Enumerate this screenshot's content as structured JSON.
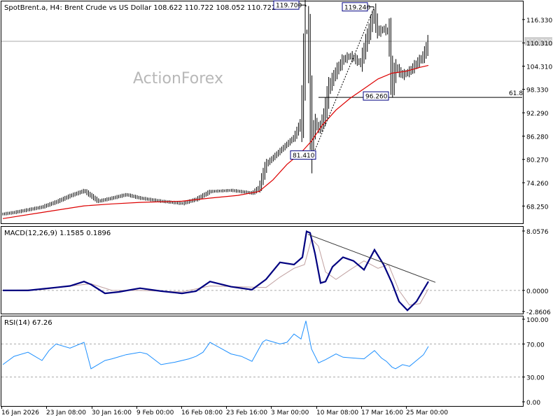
{
  "colors": {
    "background": "#ffffff",
    "text": "#000000",
    "grid_line": "#aaaaaa",
    "bar": "#000000",
    "ema": "#dd0000",
    "macd": "#000080",
    "macd_signal": "#c0a0a0",
    "rsi": "#1e90ff",
    "watermark": "#b8b8b8"
  },
  "chart_data": [
    {
      "type": "bar",
      "role": "price",
      "title": "SpotBrent.a, H4:  Brent Crude vs US Dollar  108.622 110.722 108.052 110.722",
      "watermark": "ActionForex",
      "ylim": [
        63.8,
        121.0
      ],
      "y_ticks": [
        "116.330",
        "110.310",
        "104.310",
        "98.330",
        "92.290",
        "86.280",
        "80.270",
        "74.260",
        "68.250"
      ],
      "last_price": "110.722",
      "fib_level": {
        "value": 96.26,
        "label": "61.8"
      },
      "annotations": [
        {
          "label": "119.700",
          "x": 437,
          "y": 119.7
        },
        {
          "label": "119.240",
          "x": 534,
          "y": 119.24
        },
        {
          "label": "96.260",
          "x": 552,
          "y": 96.26
        },
        {
          "label": "81.410",
          "x": 447,
          "y": 81.41
        }
      ],
      "trend_line": {
        "x": [
          447,
          534
        ],
        "y": [
          81.41,
          119.24
        ]
      },
      "price_path": {
        "x": [
          4,
          20,
          40,
          60,
          80,
          100,
          120,
          140,
          160,
          180,
          200,
          230,
          260,
          280,
          300,
          330,
          360,
          370,
          380,
          400,
          420,
          430,
          437,
          441,
          445,
          450,
          455,
          462,
          470,
          480,
          490,
          500,
          515,
          525,
          534,
          540,
          548,
          555,
          560,
          565,
          575,
          585,
          595,
          605,
          612
        ],
        "y": [
          66.2,
          66.6,
          67.3,
          68.0,
          69.3,
          70.9,
          72.2,
          69.5,
          70.3,
          71.2,
          70.3,
          69.5,
          68.9,
          70.0,
          72.0,
          72.3,
          71.6,
          73.0,
          79.0,
          82.5,
          86.0,
          90.0,
          117.0,
          106.0,
          84.0,
          90.0,
          88.0,
          91.0,
          99.0,
          103.0,
          106.0,
          107.0,
          105.0,
          112.0,
          118.0,
          113.0,
          114.0,
          113.0,
          99.0,
          104.0,
          102.0,
          103.0,
          105.0,
          107.0,
          110.7
        ]
      },
      "ema_path": {
        "x": [
          4,
          60,
          120,
          160,
          200,
          260,
          300,
          340,
          370,
          390,
          410,
          430,
          445,
          460,
          480,
          500,
          520,
          540,
          560,
          580,
          600,
          612
        ],
        "y": [
          65.0,
          66.6,
          68.3,
          68.8,
          69.2,
          69.5,
          70.3,
          71.0,
          72.0,
          75.0,
          79.0,
          82.0,
          85.0,
          89.0,
          93.0,
          96.0,
          98.5,
          101.0,
          102.5,
          103.0,
          104.0,
          104.5
        ]
      }
    },
    {
      "type": "line",
      "role": "macd",
      "title": "MACD(12,26,9) 1.1585 0.1896",
      "ylim": [
        -2.8606,
        8.0576
      ],
      "y_ticks": [
        "8.0576",
        "0.0000",
        "-2.8606"
      ],
      "macd": {
        "x": [
          4,
          40,
          80,
          100,
          120,
          130,
          150,
          170,
          200,
          230,
          260,
          280,
          300,
          330,
          360,
          380,
          400,
          420,
          432,
          438,
          443,
          450,
          458,
          465,
          475,
          490,
          505,
          520,
          535,
          548,
          560,
          570,
          582,
          595,
          612
        ],
        "y": [
          0.0,
          0.0,
          0.4,
          0.6,
          1.2,
          0.8,
          -0.4,
          -0.2,
          0.3,
          -0.1,
          -0.4,
          -0.1,
          1.2,
          0.5,
          0.1,
          1.5,
          3.8,
          3.5,
          4.5,
          8.0,
          7.8,
          5.0,
          1.0,
          1.2,
          3.2,
          4.5,
          4.0,
          2.8,
          5.5,
          3.5,
          1.0,
          -1.5,
          -2.7,
          -1.5,
          1.2
        ]
      },
      "signal": {
        "x": [
          4,
          60,
          110,
          130,
          160,
          200,
          260,
          300,
          340,
          380,
          400,
          420,
          435,
          445,
          455,
          465,
          480,
          500,
          520,
          540,
          555,
          570,
          585,
          600,
          612
        ],
        "y": [
          0.0,
          0.1,
          0.7,
          0.9,
          0.0,
          0.0,
          -0.2,
          0.6,
          0.5,
          0.4,
          1.8,
          3.0,
          3.5,
          7.0,
          6.0,
          2.5,
          1.5,
          2.8,
          4.0,
          3.0,
          3.5,
          0.0,
          -2.0,
          -1.8,
          0.2
        ]
      },
      "trend_line": {
        "x": [
          440,
          622
        ],
        "y": [
          7.6,
          1.1
        ]
      }
    },
    {
      "type": "line",
      "role": "rsi",
      "title": "RSI(14) 67.26",
      "ylim": [
        0,
        100
      ],
      "y_ticks": [
        "100.00",
        "70.00",
        "30.00",
        "0.00"
      ],
      "levels": [
        70,
        30
      ],
      "x": [
        4,
        20,
        40,
        60,
        70,
        80,
        100,
        120,
        130,
        150,
        160,
        180,
        200,
        210,
        230,
        250,
        270,
        280,
        290,
        300,
        315,
        330,
        345,
        360,
        375,
        380,
        400,
        410,
        420,
        430,
        437,
        445,
        455,
        465,
        480,
        490,
        505,
        520,
        535,
        545,
        552,
        560,
        565,
        575,
        585,
        595,
        605,
        612
      ],
      "y": [
        45,
        55,
        60,
        50,
        62,
        70,
        65,
        72,
        40,
        50,
        52,
        57,
        60,
        58,
        45,
        48,
        52,
        55,
        60,
        72,
        65,
        58,
        55,
        49,
        72,
        75,
        70,
        72,
        82,
        76,
        98,
        64,
        47,
        51,
        58,
        54,
        53,
        52,
        62,
        53,
        49,
        42,
        40,
        45,
        43,
        50,
        57,
        67
      ]
    }
  ],
  "x_axis": {
    "labels": [
      "16 Jan 2026",
      "23 Jan 08:00",
      "30 Jan 16:00",
      "9 Feb 00:00",
      "16 Feb 08:00",
      "23 Feb 16:00",
      "3 Mar 00:00",
      "10 Mar 08:00",
      "17 Mar 16:00",
      "25 Mar 00:00"
    ],
    "positions": [
      2,
      66,
      131,
      195,
      259,
      323,
      387,
      452,
      516,
      580
    ]
  }
}
